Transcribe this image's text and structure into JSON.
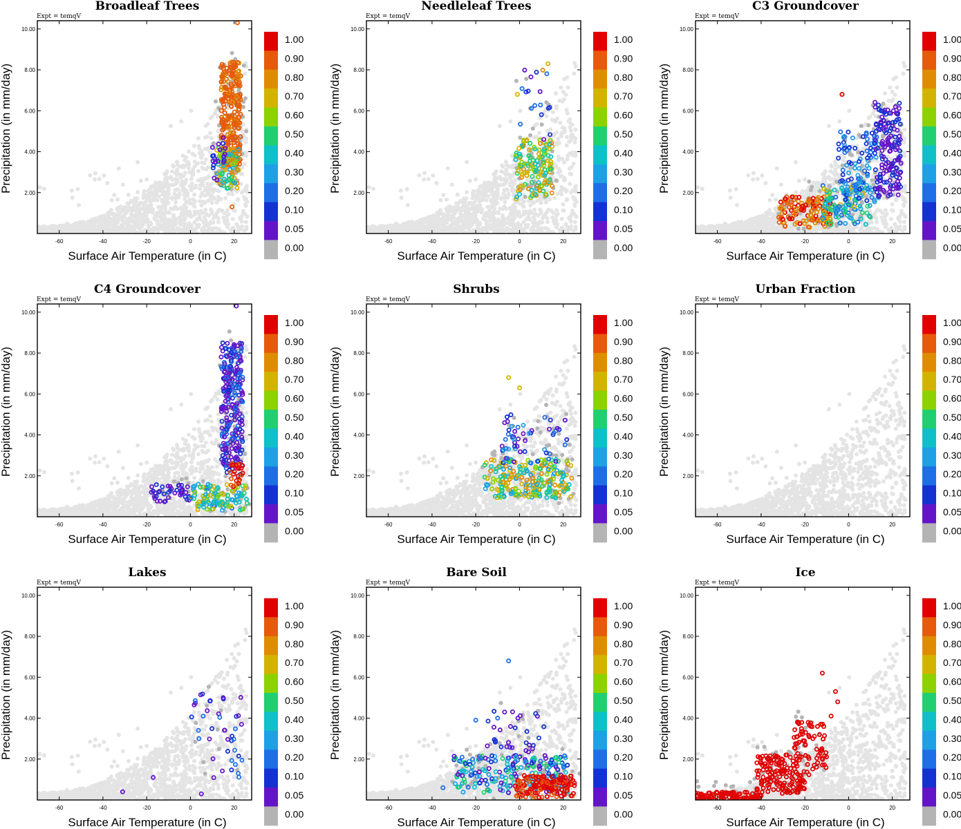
{
  "figure": {
    "panel_names": [
      "Broadleaf Trees",
      "Needleleaf Trees",
      "C3 Groundcover",
      "C4 Groundcover",
      "Shrubs",
      "Urban Fraction",
      "Lakes",
      "Bare Soil",
      "Ice"
    ]
  },
  "chart_data": {
    "type": "scatter",
    "subtitle": "Expt = temqV",
    "xlabel": "Surface Air Temperature (in C)",
    "ylabel": "Precipitation (in mm/day)",
    "xlim": [
      -70,
      28
    ],
    "ylim": [
      0,
      10.4
    ],
    "xticks": [
      "-60",
      "-40",
      "-20",
      "0",
      "20"
    ],
    "xtick_values": [
      -60,
      -40,
      -20,
      0,
      20
    ],
    "yticks": [
      "2.00",
      "4.00",
      "6.00",
      "8.00",
      "10.00"
    ],
    "ytick_values": [
      2,
      4,
      6,
      8,
      10
    ],
    "colorbar": {
      "labels": [
        "1.00",
        "0.90",
        "0.80",
        "0.70",
        "0.60",
        "0.50",
        "0.40",
        "0.30",
        "0.20",
        "0.10",
        "0.05",
        "0.00"
      ],
      "colors": [
        "#e00000",
        "#e65a0a",
        "#e08c00",
        "#d2b400",
        "#8cd200",
        "#20d070",
        "#10c0c8",
        "#1ea0e6",
        "#1e6ee6",
        "#1432d2",
        "#6414c8",
        "#b4b4b4"
      ]
    },
    "background_color": "#e4e4e4",
    "panels": [
      {
        "title": "Broadleaf Trees",
        "clusters": [
          {
            "x": [
              14,
              23
            ],
            "y": [
              3.2,
              8.4
            ],
            "n": 260,
            "colors": [
              "#e65a0a",
              "#e65a0a",
              "#e65a0a",
              "#e08c00"
            ]
          },
          {
            "x": [
              12,
              22
            ],
            "y": [
              2.2,
              4.2
            ],
            "n": 80,
            "colors": [
              "#8cd200",
              "#20d070",
              "#10c0c8",
              "#1ea0e6",
              "#d2b400",
              "#e08c00"
            ]
          },
          {
            "x": [
              10,
              16
            ],
            "y": [
              2.5,
              4.8
            ],
            "n": 20,
            "colors": [
              "#1432d2",
              "#6414c8"
            ]
          }
        ],
        "highlight": [
          [
            21.5,
            10.3
          ],
          [
            19,
            1.3
          ]
        ]
      },
      {
        "title": "Needleleaf Trees",
        "clusters": [
          {
            "x": [
              -2,
              15
            ],
            "y": [
              1.6,
              4.6
            ],
            "n": 140,
            "colors": [
              "#d2b400",
              "#8cd200",
              "#20d070",
              "#10c0c8",
              "#e08c00"
            ]
          },
          {
            "x": [
              0,
              15
            ],
            "y": [
              4.5,
              8.3
            ],
            "n": 18,
            "colors": [
              "#1432d2",
              "#6414c8",
              "#1e6ee6",
              "#e08c00"
            ]
          }
        ],
        "highlight": [
          [
            -1,
            6.8
          ],
          [
            13,
            8.3
          ]
        ]
      },
      {
        "title": "C3 Groundcover",
        "clusters": [
          {
            "x": [
              -32,
              -8
            ],
            "y": [
              0.3,
              1.8
            ],
            "n": 130,
            "colors": [
              "#e00000",
              "#e65a0a",
              "#e08c00"
            ]
          },
          {
            "x": [
              -12,
              10
            ],
            "y": [
              0.4,
              2.4
            ],
            "n": 120,
            "colors": [
              "#1e6ee6",
              "#1ea0e6",
              "#10c0c8",
              "#20d070",
              "#d2b400"
            ]
          },
          {
            "x": [
              -5,
              14
            ],
            "y": [
              1.5,
              5.0
            ],
            "n": 100,
            "colors": [
              "#1432d2",
              "#1e6ee6",
              "#1ea0e6"
            ]
          },
          {
            "x": [
              12,
              24
            ],
            "y": [
              1.8,
              6.5
            ],
            "n": 150,
            "colors": [
              "#6414c8",
              "#6414c8",
              "#1432d2"
            ]
          }
        ],
        "highlight": [
          [
            -3,
            6.8
          ]
        ]
      },
      {
        "title": "C4 Groundcover",
        "clusters": [
          {
            "x": [
              14,
              24
            ],
            "y": [
              2.0,
              8.5
            ],
            "n": 260,
            "colors": [
              "#6414c8",
              "#1432d2",
              "#1e6ee6",
              "#6414c8"
            ]
          },
          {
            "x": [
              -18,
              0
            ],
            "y": [
              0.7,
              1.6
            ],
            "n": 40,
            "colors": [
              "#6414c8",
              "#1432d2"
            ]
          },
          {
            "x": [
              0,
              26
            ],
            "y": [
              0.3,
              1.6
            ],
            "n": 110,
            "colors": [
              "#10c0c8",
              "#1ea0e6",
              "#20d070",
              "#d2b400",
              "#8cd200",
              "#1e6ee6"
            ]
          },
          {
            "x": [
              18,
              24
            ],
            "y": [
              1.4,
              2.6
            ],
            "n": 25,
            "colors": [
              "#e00000",
              "#e65a0a"
            ]
          }
        ],
        "highlight": [
          [
            21,
            10.3
          ]
        ]
      },
      {
        "title": "Shrubs",
        "clusters": [
          {
            "x": [
              -16,
              24
            ],
            "y": [
              0.9,
              2.8
            ],
            "n": 210,
            "colors": [
              "#d2b400",
              "#8cd200",
              "#20d070",
              "#10c0c8",
              "#1ea0e6",
              "#e08c00"
            ]
          },
          {
            "x": [
              -8,
              22
            ],
            "y": [
              2.6,
              5.0
            ],
            "n": 55,
            "colors": [
              "#1432d2",
              "#6414c8",
              "#1e6ee6",
              "#1ea0e6"
            ]
          }
        ],
        "highlight": [
          [
            -5,
            6.8
          ],
          [
            0,
            6.3
          ]
        ]
      },
      {
        "title": "Urban Fraction",
        "clusters": [],
        "highlight": []
      },
      {
        "title": "Lakes",
        "clusters": [
          {
            "x": [
              0,
              25
            ],
            "y": [
              1.0,
              5.2
            ],
            "n": 40,
            "colors": [
              "#6414c8",
              "#1432d2",
              "#1e6ee6",
              "#6414c8"
            ]
          }
        ],
        "highlight": [
          [
            -31,
            0.4
          ],
          [
            -17,
            1.1
          ],
          [
            5,
            0.3
          ],
          [
            15,
            5.0
          ]
        ]
      },
      {
        "title": "Bare Soil",
        "clusters": [
          {
            "x": [
              -30,
              22
            ],
            "y": [
              0.3,
              2.2
            ],
            "n": 210,
            "colors": [
              "#1e6ee6",
              "#1432d2",
              "#6414c8",
              "#1ea0e6",
              "#10c0c8",
              "#20d070"
            ]
          },
          {
            "x": [
              -16,
              12
            ],
            "y": [
              1.5,
              4.6
            ],
            "n": 35,
            "colors": [
              "#6414c8",
              "#1432d2"
            ]
          },
          {
            "x": [
              -2,
              26
            ],
            "y": [
              0.05,
              1.2
            ],
            "n": 150,
            "colors": [
              "#e00000",
              "#e00000",
              "#e65a0a"
            ]
          }
        ],
        "highlight": [
          [
            -5,
            6.8
          ],
          [
            -10,
            4.0
          ],
          [
            -20,
            3.9
          ],
          [
            -35,
            0.6
          ]
        ]
      },
      {
        "title": "Ice",
        "clusters": [
          {
            "x": [
              -70,
              -40
            ],
            "y": [
              0.0,
              0.4
            ],
            "n": 90,
            "colors": [
              "#e00000"
            ]
          },
          {
            "x": [
              -42,
              -20
            ],
            "y": [
              0.3,
              2.2
            ],
            "n": 150,
            "colors": [
              "#e00000"
            ]
          },
          {
            "x": [
              -25,
              -10
            ],
            "y": [
              1.2,
              3.8
            ],
            "n": 70,
            "colors": [
              "#e00000"
            ]
          }
        ],
        "highlight": [
          [
            -12,
            6.2
          ],
          [
            -6,
            5.3
          ],
          [
            -5,
            4.8
          ],
          [
            -8,
            4.1
          ]
        ]
      }
    ]
  }
}
